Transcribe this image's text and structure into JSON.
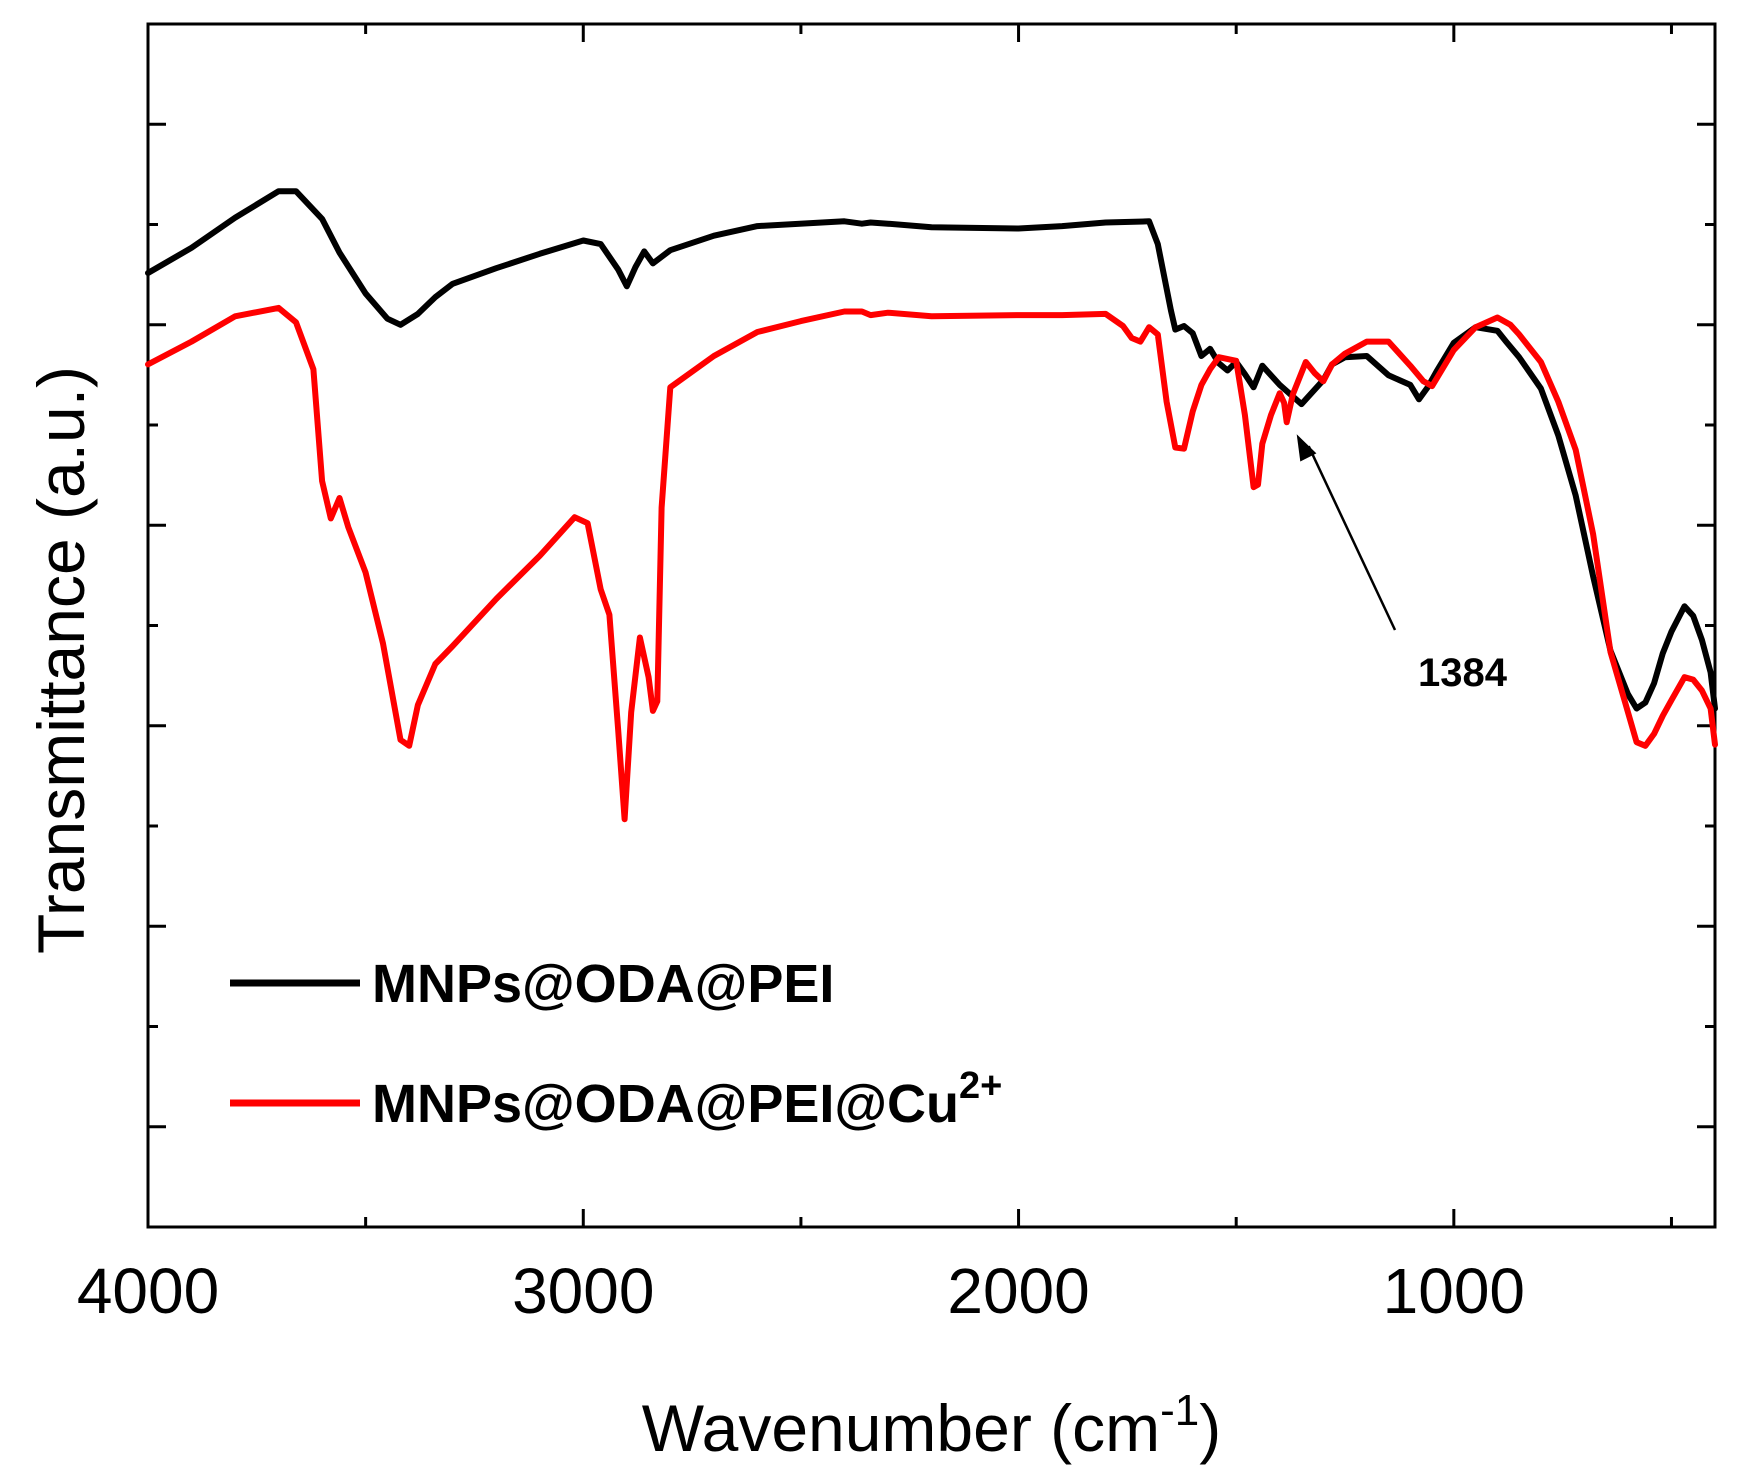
{
  "chart_data": {
    "type": "line",
    "title": "",
    "xlabel": "Wavenumber (cm",
    "xlabel_sup": "-1",
    "xlabel_close": ")",
    "ylabel": "Transmittance (a.u.)",
    "xlim": [
      4000,
      400
    ],
    "ylim": [
      0,
      100
    ],
    "x_ticks": [
      4000,
      3000,
      2000,
      1000
    ],
    "x_tick_labels": [
      "4000",
      "3000",
      "2000",
      "1000"
    ],
    "grid": false,
    "legend_position": "bottom-left",
    "series": [
      {
        "name": "MNPs@ODA@PEI",
        "color": "#000000",
        "x": [
          4000,
          3900,
          3800,
          3700,
          3660,
          3600,
          3560,
          3500,
          3450,
          3420,
          3380,
          3340,
          3300,
          3200,
          3100,
          3000,
          2960,
          2920,
          2900,
          2880,
          2860,
          2840,
          2800,
          2700,
          2600,
          2400,
          2360,
          2340,
          2300,
          2200,
          2000,
          1900,
          1800,
          1700,
          1680,
          1650,
          1640,
          1620,
          1600,
          1580,
          1560,
          1540,
          1520,
          1500,
          1480,
          1460,
          1450,
          1440,
          1400,
          1350,
          1300,
          1280,
          1250,
          1200,
          1150,
          1100,
          1080,
          1060,
          1040,
          1000,
          950,
          900,
          880,
          850,
          800,
          760,
          720,
          680,
          640,
          600,
          580,
          560,
          540,
          520,
          500,
          470,
          450,
          430,
          410,
          400
        ],
        "y": [
          79.3,
          81.4,
          83.9,
          86.1,
          86.1,
          83.8,
          81.0,
          77.6,
          75.5,
          75.0,
          75.9,
          77.3,
          78.4,
          79.7,
          80.9,
          82.0,
          81.7,
          79.6,
          78.2,
          79.8,
          81.1,
          80.1,
          81.2,
          82.4,
          83.2,
          83.6,
          83.4,
          83.5,
          83.4,
          83.1,
          83.0,
          83.2,
          83.5,
          83.6,
          81.7,
          76.2,
          74.6,
          74.9,
          74.3,
          72.4,
          73.0,
          71.8,
          71.2,
          71.9,
          70.9,
          69.8,
          70.7,
          71.6,
          70.0,
          68.4,
          70.4,
          71.7,
          72.3,
          72.4,
          70.8,
          70.0,
          68.8,
          69.8,
          71.1,
          73.5,
          74.8,
          74.5,
          73.6,
          72.3,
          69.7,
          65.8,
          60.8,
          54.1,
          47.9,
          44.3,
          43.1,
          43.6,
          45.2,
          47.7,
          49.5,
          51.6,
          50.8,
          48.8,
          46.1,
          43.1
        ]
      },
      {
        "name": "MNPs@ODA@PEI@Cu",
        "name_sup": "2+",
        "color": "#ff0000",
        "x": [
          4000,
          3900,
          3800,
          3700,
          3660,
          3620,
          3600,
          3580,
          3560,
          3540,
          3500,
          3460,
          3420,
          3400,
          3380,
          3340,
          3300,
          3200,
          3100,
          3020,
          2990,
          2960,
          2940,
          2920,
          2905,
          2890,
          2870,
          2850,
          2840,
          2830,
          2820,
          2800,
          2700,
          2600,
          2500,
          2400,
          2360,
          2340,
          2300,
          2200,
          2000,
          1900,
          1800,
          1760,
          1740,
          1720,
          1700,
          1680,
          1660,
          1640,
          1620,
          1600,
          1580,
          1560,
          1540,
          1500,
          1480,
          1460,
          1450,
          1440,
          1420,
          1400,
          1390,
          1384,
          1370,
          1340,
          1320,
          1300,
          1280,
          1250,
          1200,
          1150,
          1100,
          1070,
          1050,
          1000,
          950,
          900,
          870,
          850,
          800,
          760,
          720,
          680,
          640,
          600,
          580,
          560,
          540,
          520,
          500,
          470,
          450,
          430,
          410,
          400
        ],
        "y": [
          71.7,
          73.6,
          75.7,
          76.4,
          75.2,
          71.3,
          62.0,
          58.9,
          60.6,
          58.2,
          54.4,
          48.5,
          40.5,
          40.0,
          43.4,
          46.8,
          48.3,
          52.2,
          55.8,
          59.0,
          58.5,
          53.0,
          50.9,
          41.4,
          33.9,
          42.8,
          49.0,
          45.7,
          42.9,
          43.7,
          59.8,
          69.8,
          72.4,
          74.4,
          75.3,
          76.1,
          76.1,
          75.8,
          76.0,
          75.7,
          75.8,
          75.8,
          75.9,
          74.9,
          73.9,
          73.6,
          74.8,
          74.2,
          68.6,
          64.8,
          64.7,
          67.8,
          70.0,
          71.3,
          72.3,
          72.0,
          67.5,
          61.5,
          61.7,
          65.1,
          67.5,
          69.3,
          68.5,
          66.9,
          69.2,
          71.9,
          71.0,
          70.3,
          71.7,
          72.6,
          73.6,
          73.6,
          71.6,
          70.3,
          69.9,
          72.9,
          74.8,
          75.6,
          75.0,
          74.2,
          71.9,
          68.6,
          64.6,
          57.6,
          47.8,
          42.8,
          40.3,
          40.0,
          41.0,
          42.5,
          43.8,
          45.7,
          45.5,
          44.6,
          43.1,
          40.1
        ]
      }
    ],
    "annotations": [
      {
        "text": "1384",
        "target_x": 1384,
        "target_y": 66.9
      }
    ]
  }
}
